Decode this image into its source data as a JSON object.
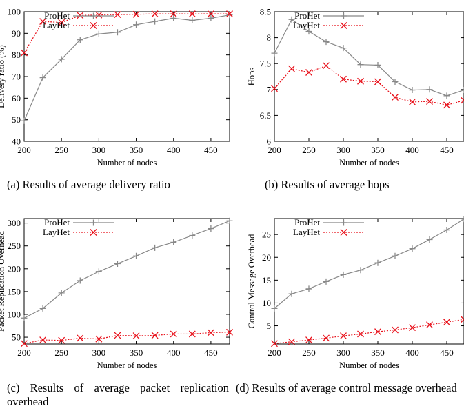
{
  "chart_data": [
    {
      "type": "line",
      "x": [
        200,
        225,
        250,
        275,
        300,
        325,
        350,
        375,
        400,
        425,
        450,
        475
      ],
      "xlim": [
        200,
        475
      ],
      "xticks": [
        200,
        250,
        300,
        350,
        400,
        450
      ],
      "ylim": [
        40,
        100
      ],
      "yticks": [
        40,
        50,
        60,
        70,
        80,
        90,
        100
      ],
      "xlabel": "Number of nodes",
      "ylabel": "Delivery ratio (%)",
      "legend_position": "top-left",
      "series": [
        {
          "name": "ProHet",
          "color": "#888888",
          "style": "solid",
          "marker": "plus",
          "values": [
            49.5,
            69.5,
            78,
            87,
            89.7,
            90.5,
            94,
            95.5,
            97,
            96,
            97,
            98.5
          ]
        },
        {
          "name": "LayHet",
          "color": "#e8101a",
          "style": "dotted",
          "marker": "cross",
          "values": [
            81,
            95.5,
            95,
            98.3,
            98.5,
            98.7,
            98.8,
            99,
            99,
            99,
            99,
            99
          ]
        }
      ],
      "caption": "(a) Results of average delivery ratio"
    },
    {
      "type": "line",
      "x": [
        200,
        225,
        250,
        275,
        300,
        325,
        350,
        375,
        400,
        425,
        450,
        475
      ],
      "xlim": [
        200,
        475
      ],
      "xticks": [
        200,
        250,
        300,
        350,
        400,
        450
      ],
      "ylim": [
        6,
        8.5
      ],
      "yticks": [
        6,
        6.5,
        7,
        7.5,
        8,
        8.5
      ],
      "xlabel": "Number of nodes",
      "ylabel": "Hops",
      "legend_position": "top-left",
      "series": [
        {
          "name": "ProHet",
          "color": "#888888",
          "style": "solid",
          "marker": "plus",
          "values": [
            7.7,
            8.35,
            8.12,
            7.92,
            7.8,
            7.48,
            7.47,
            7.15,
            6.99,
            7.0,
            6.88,
            6.99
          ]
        },
        {
          "name": "LayHet",
          "color": "#e8101a",
          "style": "dotted",
          "marker": "cross",
          "values": [
            7.02,
            7.4,
            7.33,
            7.46,
            7.2,
            7.16,
            7.15,
            6.85,
            6.76,
            6.77,
            6.7,
            6.79
          ]
        }
      ],
      "caption": "(b) Results of average hops"
    },
    {
      "type": "line",
      "x": [
        200,
        225,
        250,
        275,
        300,
        325,
        350,
        375,
        400,
        425,
        450,
        475
      ],
      "xlim": [
        200,
        475
      ],
      "xticks": [
        200,
        250,
        300,
        350,
        400,
        450
      ],
      "ylim": [
        35,
        310
      ],
      "yticks": [
        50,
        100,
        150,
        200,
        250,
        300
      ],
      "xlabel": "Number of nodes",
      "ylabel": "Packet Replication Overhead",
      "legend_position": "top-left",
      "series": [
        {
          "name": "ProHet",
          "color": "#888888",
          "style": "solid",
          "marker": "plus",
          "values": [
            92,
            113,
            147,
            174,
            194,
            211,
            228,
            246,
            258,
            273,
            288,
            305
          ]
        },
        {
          "name": "LayHet",
          "color": "#e8101a",
          "style": "dotted",
          "marker": "cross",
          "values": [
            36,
            44,
            43,
            48,
            46,
            54,
            53,
            54,
            57,
            57,
            60,
            61
          ]
        }
      ],
      "caption": "(c) Results of average packet replication overhead"
    },
    {
      "type": "line",
      "x": [
        200,
        225,
        250,
        275,
        300,
        325,
        350,
        375,
        400,
        425,
        450,
        475
      ],
      "xlim": [
        200,
        475
      ],
      "xticks": [
        200,
        250,
        300,
        350,
        400,
        450
      ],
      "ylim": [
        1,
        28.5
      ],
      "yticks": [
        5,
        10,
        15,
        20,
        25
      ],
      "xlabel": "Number of nodes",
      "ylabel": "Control Message Overhead",
      "legend_position": "top-left",
      "series": [
        {
          "name": "ProHet",
          "color": "#888888",
          "style": "solid",
          "marker": "plus",
          "values": [
            8.8,
            12,
            13.1,
            14.7,
            16.2,
            17.2,
            18.8,
            20.3,
            21.9,
            23.9,
            26,
            28.4
          ]
        },
        {
          "name": "LayHet",
          "color": "#e8101a",
          "style": "dotted",
          "marker": "cross",
          "values": [
            1.1,
            1.5,
            1.9,
            2.3,
            2.8,
            3.2,
            3.7,
            4.1,
            4.6,
            5.2,
            5.8,
            6.4
          ]
        }
      ],
      "caption": "(d) Results of average control message overhead"
    }
  ]
}
